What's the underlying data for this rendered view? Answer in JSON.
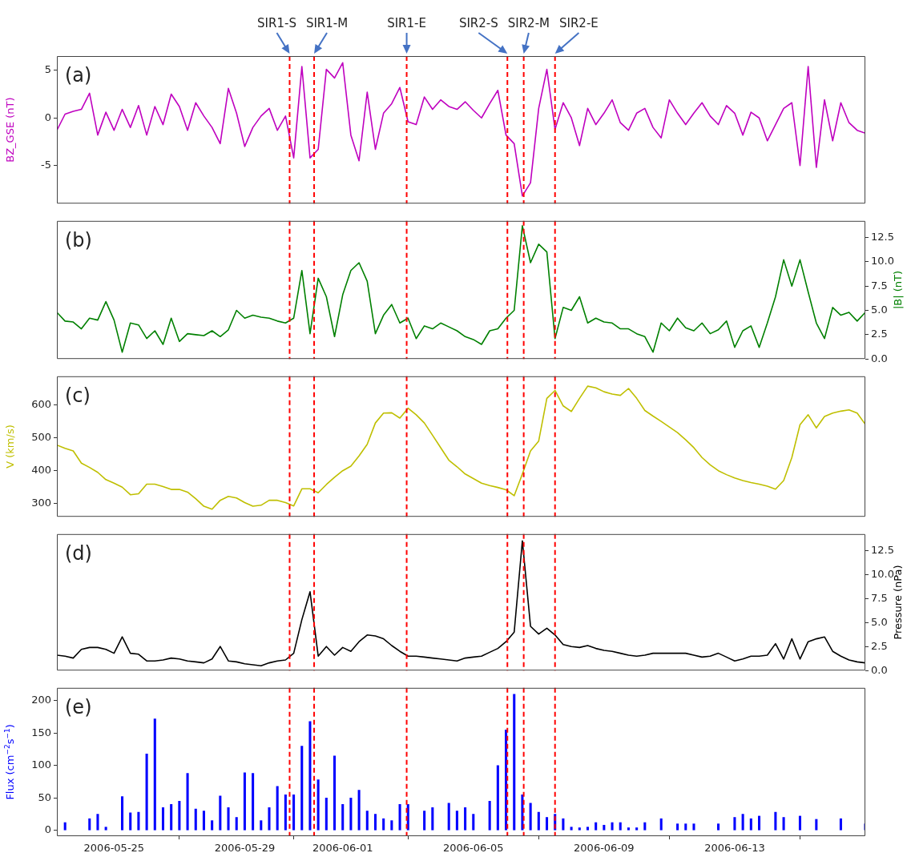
{
  "chart_data": [
    {
      "type": "line",
      "xlim": [
        "2006-05-23T06:00",
        "2006-06-17T00:00"
      ],
      "xticks": [
        "2006-05-25",
        "2006-05-29",
        "2006-06-01",
        "2006-06-05",
        "2006-06-09",
        "2006-06-13"
      ],
      "tick_labels": "y",
      "ylim": [
        -9,
        6.5
      ],
      "yticks": [
        -5,
        0,
        5
      ],
      "ylabel": "BZ_GSE (nT)",
      "annotations": [
        "(a)"
      ],
      "x": [
        "2006-05-23T06:00",
        "2006-05-23T12:00",
        "2006-05-23T18:00",
        "2006-05-24T00:00",
        "2006-05-24T06:00",
        "2006-05-24T12:00",
        "2006-05-24T18:00",
        "2006-05-25T00:00",
        "2006-05-25T06:00",
        "2006-05-25T12:00",
        "2006-05-25T18:00",
        "2006-05-26T00:00",
        "2006-05-26T06:00",
        "2006-05-26T12:00",
        "2006-05-26T18:00",
        "2006-05-27T00:00",
        "2006-05-27T06:00",
        "2006-05-27T12:00",
        "2006-05-27T18:00",
        "2006-05-28T00:00",
        "2006-05-28T06:00",
        "2006-05-28T12:00",
        "2006-05-28T18:00",
        "2006-05-29T00:00",
        "2006-05-29T06:00",
        "2006-05-29T12:00",
        "2006-05-29T18:00",
        "2006-05-30T00:00",
        "2006-05-30T06:00",
        "2006-05-30T12:00",
        "2006-05-30T18:00",
        "2006-05-31T00:00",
        "2006-05-31T06:00",
        "2006-05-31T12:00",
        "2006-05-31T18:00",
        "2006-06-01T00:00",
        "2006-06-01T06:00",
        "2006-06-01T12:00",
        "2006-06-01T18:00",
        "2006-06-02T00:00",
        "2006-06-02T06:00",
        "2006-06-02T12:00",
        "2006-06-02T18:00",
        "2006-06-03T00:00",
        "2006-06-03T06:00",
        "2006-06-03T12:00",
        "2006-06-03T18:00",
        "2006-06-04T00:00",
        "2006-06-04T06:00",
        "2006-06-04T12:00",
        "2006-06-04T18:00",
        "2006-06-05T00:00",
        "2006-06-05T06:00",
        "2006-06-05T12:00",
        "2006-06-05T18:00",
        "2006-06-06T00:00",
        "2006-06-06T06:00",
        "2006-06-06T12:00",
        "2006-06-06T18:00",
        "2006-06-07T00:00",
        "2006-06-07T06:00",
        "2006-06-07T12:00",
        "2006-06-07T18:00",
        "2006-06-08T00:00",
        "2006-06-08T06:00",
        "2006-06-08T12:00",
        "2006-06-08T18:00",
        "2006-06-09T00:00",
        "2006-06-09T06:00",
        "2006-06-09T12:00",
        "2006-06-09T18:00",
        "2006-06-10T00:00",
        "2006-06-10T06:00",
        "2006-06-10T12:00",
        "2006-06-10T18:00",
        "2006-06-11T00:00",
        "2006-06-11T06:00",
        "2006-06-11T12:00",
        "2006-06-11T18:00",
        "2006-06-12T00:00",
        "2006-06-12T06:00",
        "2006-06-12T12:00",
        "2006-06-12T18:00",
        "2006-06-13T00:00",
        "2006-06-13T06:00",
        "2006-06-13T12:00",
        "2006-06-13T18:00",
        "2006-06-14T00:00",
        "2006-06-14T06:00",
        "2006-06-14T12:00",
        "2006-06-14T18:00",
        "2006-06-15T00:00",
        "2006-06-15T06:00",
        "2006-06-15T12:00",
        "2006-06-15T18:00",
        "2006-06-16T00:00",
        "2006-06-16T06:00",
        "2006-06-16T12:00",
        "2006-06-16T18:00",
        "2006-06-17T00:00"
      ],
      "series": [
        {
          "color": "#bf00bf",
          "values": [
            -1.3,
            0.4,
            0.7,
            0.9,
            2.6,
            -1.8,
            0.6,
            -1.3,
            0.9,
            -1.0,
            1.3,
            -1.8,
            1.2,
            -0.7,
            2.5,
            1.2,
            -1.3,
            1.6,
            0.2,
            -1.0,
            -2.7,
            3.1,
            0.5,
            -3.0,
            -1.0,
            0.2,
            1.0,
            -1.3,
            0.2,
            -4.2,
            5.4,
            -4.2,
            -3.3,
            5.1,
            4.2,
            5.8,
            -1.8,
            -4.5,
            2.7,
            -3.3,
            0.5,
            1.5,
            3.2,
            -0.4,
            -0.7,
            2.2,
            0.9,
            1.9,
            1.2,
            0.9,
            1.7,
            0.8,
            0.0,
            1.5,
            2.9,
            -1.8,
            -2.7,
            -8.2,
            -6.8,
            1.0,
            5.1,
            -1.2,
            1.6,
            0.0,
            -2.9,
            1.0,
            -0.7,
            0.5,
            1.9,
            -0.5,
            -1.3,
            0.5,
            1.0,
            -1.0,
            -2.1,
            1.9,
            0.5,
            -0.7,
            0.5,
            1.6,
            0.2,
            -0.7,
            1.3,
            0.5,
            -1.8,
            0.6,
            0.0,
            -2.4,
            -0.7,
            1.0,
            1.6,
            -5.0,
            5.4,
            -5.2,
            1.9,
            -2.4,
            1.6,
            -0.5,
            -1.3,
            -1.6
          ]
        }
      ],
      "ref_lines": [
        {
          "axis": "x",
          "value": "2006-05-30T09:00",
          "label": "SIR1-S",
          "color": "#ff0000",
          "line_style": "dashed"
        },
        {
          "axis": "x",
          "value": "2006-05-31T03:00",
          "label": "SIR1-M",
          "color": "#ff0000",
          "line_style": "dashed"
        },
        {
          "axis": "x",
          "value": "2006-06-02T23:00",
          "label": "SIR1-E",
          "color": "#ff0000",
          "line_style": "dashed"
        },
        {
          "axis": "x",
          "value": "2006-06-06T01:00",
          "label": "SIR2-S",
          "color": "#ff0000",
          "line_style": "dashed"
        },
        {
          "axis": "x",
          "value": "2006-06-06T13:00",
          "label": "SIR2-M",
          "color": "#ff0000",
          "line_style": "dashed"
        },
        {
          "axis": "x",
          "value": "2006-06-07T12:00",
          "label": "SIR2-E",
          "color": "#ff0000",
          "line_style": "dashed"
        }
      ]
    },
    {
      "type": "line",
      "xlim": [
        "2006-05-23T06:00",
        "2006-06-17T00:00"
      ],
      "xticks": [
        "2006-05-25",
        "2006-05-29",
        "2006-06-01",
        "2006-06-05",
        "2006-06-09",
        "2006-06-13"
      ],
      "tick_labels": "y",
      "y2lim": [
        0,
        14.2
      ],
      "y2ticks": [
        {
          "value": 0,
          "label": "0.0"
        },
        {
          "value": 2.5,
          "label": "2.5"
        },
        {
          "value": 5,
          "label": "5.0"
        },
        {
          "value": 7.5,
          "label": "7.5"
        },
        {
          "value": 10,
          "label": "10.0"
        },
        {
          "value": 12.5,
          "label": "12.5"
        }
      ],
      "y2label": "|B| (nT)",
      "annotations": [
        "(b)"
      ],
      "x": [
        "2006-05-23T06:00",
        "2006-05-23T12:00",
        "2006-05-23T18:00",
        "2006-05-24T00:00",
        "2006-05-24T06:00",
        "2006-05-24T12:00",
        "2006-05-24T18:00",
        "2006-05-25T00:00",
        "2006-05-25T06:00",
        "2006-05-25T12:00",
        "2006-05-25T18:00",
        "2006-05-26T00:00",
        "2006-05-26T06:00",
        "2006-05-26T12:00",
        "2006-05-26T18:00",
        "2006-05-27T00:00",
        "2006-05-27T06:00",
        "2006-05-27T12:00",
        "2006-05-27T18:00",
        "2006-05-28T00:00",
        "2006-05-28T06:00",
        "2006-05-28T12:00",
        "2006-05-28T18:00",
        "2006-05-29T00:00",
        "2006-05-29T06:00",
        "2006-05-29T12:00",
        "2006-05-29T18:00",
        "2006-05-30T00:00",
        "2006-05-30T06:00",
        "2006-05-30T12:00",
        "2006-05-30T18:00",
        "2006-05-31T00:00",
        "2006-05-31T06:00",
        "2006-05-31T12:00",
        "2006-05-31T18:00",
        "2006-06-01T00:00",
        "2006-06-01T06:00",
        "2006-06-01T12:00",
        "2006-06-01T18:00",
        "2006-06-02T00:00",
        "2006-06-02T06:00",
        "2006-06-02T12:00",
        "2006-06-02T18:00",
        "2006-06-03T00:00",
        "2006-06-03T06:00",
        "2006-06-03T12:00",
        "2006-06-03T18:00",
        "2006-06-04T00:00",
        "2006-06-04T06:00",
        "2006-06-04T12:00",
        "2006-06-04T18:00",
        "2006-06-05T00:00",
        "2006-06-05T06:00",
        "2006-06-05T12:00",
        "2006-06-05T18:00",
        "2006-06-06T00:00",
        "2006-06-06T06:00",
        "2006-06-06T12:00",
        "2006-06-06T18:00",
        "2006-06-07T00:00",
        "2006-06-07T06:00",
        "2006-06-07T12:00",
        "2006-06-07T18:00",
        "2006-06-08T00:00",
        "2006-06-08T06:00",
        "2006-06-08T12:00",
        "2006-06-08T18:00",
        "2006-06-09T00:00",
        "2006-06-09T06:00",
        "2006-06-09T12:00",
        "2006-06-09T18:00",
        "2006-06-10T00:00",
        "2006-06-10T06:00",
        "2006-06-10T12:00",
        "2006-06-10T18:00",
        "2006-06-11T00:00",
        "2006-06-11T06:00",
        "2006-06-11T12:00",
        "2006-06-11T18:00",
        "2006-06-12T00:00",
        "2006-06-12T06:00",
        "2006-06-12T12:00",
        "2006-06-12T18:00",
        "2006-06-13T00:00",
        "2006-06-13T06:00",
        "2006-06-13T12:00",
        "2006-06-13T18:00",
        "2006-06-14T00:00",
        "2006-06-14T06:00",
        "2006-06-14T12:00",
        "2006-06-14T18:00",
        "2006-06-15T00:00",
        "2006-06-15T06:00",
        "2006-06-15T12:00",
        "2006-06-15T18:00",
        "2006-06-16T00:00",
        "2006-06-16T06:00",
        "2006-06-16T12:00",
        "2006-06-16T18:00",
        "2006-06-17T00:00"
      ],
      "series": [
        {
          "color": "#008000",
          "axis": "y2",
          "values": [
            4.8,
            3.9,
            3.8,
            3.1,
            4.2,
            4.0,
            5.9,
            4.0,
            0.7,
            3.7,
            3.5,
            2.1,
            2.9,
            1.5,
            4.2,
            1.8,
            2.6,
            2.5,
            2.4,
            2.9,
            2.3,
            3.0,
            5.0,
            4.2,
            4.5,
            4.3,
            4.2,
            3.9,
            3.7,
            4.2,
            9.1,
            2.6,
            8.3,
            6.4,
            2.3,
            6.6,
            9.1,
            9.9,
            8.0,
            2.6,
            4.5,
            5.6,
            3.7,
            4.2,
            2.1,
            3.4,
            3.1,
            3.7,
            3.3,
            2.9,
            2.3,
            2.0,
            1.5,
            2.9,
            3.1,
            4.2,
            5.0,
            13.7,
            9.9,
            11.8,
            11.0,
            2.1,
            5.3,
            5.0,
            6.4,
            3.7,
            4.2,
            3.8,
            3.7,
            3.1,
            3.1,
            2.6,
            2.3,
            0.7,
            3.7,
            2.9,
            4.2,
            3.2,
            2.9,
            3.7,
            2.6,
            3.0,
            3.9,
            1.2,
            2.9,
            3.4,
            1.2,
            3.7,
            6.4,
            10.2,
            7.5,
            10.2,
            6.9,
            3.7,
            2.1,
            5.3,
            4.5,
            4.8,
            3.9,
            4.8
          ]
        }
      ],
      "ref_lines": [
        {
          "axis": "x",
          "value": "2006-05-30T09:00",
          "color": "#ff0000",
          "line_style": "dashed"
        },
        {
          "axis": "x",
          "value": "2006-05-31T03:00",
          "color": "#ff0000",
          "line_style": "dashed"
        },
        {
          "axis": "x",
          "value": "2006-06-02T23:00",
          "color": "#ff0000",
          "line_style": "dashed"
        },
        {
          "axis": "x",
          "value": "2006-06-06T01:00",
          "color": "#ff0000",
          "line_style": "dashed"
        },
        {
          "axis": "x",
          "value": "2006-06-06T13:00",
          "color": "#ff0000",
          "line_style": "dashed"
        },
        {
          "axis": "x",
          "value": "2006-06-07T12:00",
          "color": "#ff0000",
          "line_style": "dashed"
        }
      ]
    },
    {
      "type": "line",
      "xlim": [
        "2006-05-23T06:00",
        "2006-06-17T00:00"
      ],
      "xticks": [
        "2006-05-25",
        "2006-05-29",
        "2006-06-01",
        "2006-06-05",
        "2006-06-09",
        "2006-06-13"
      ],
      "tick_labels": "y",
      "ylim": [
        260,
        687
      ],
      "yticks": [
        300,
        400,
        500,
        600
      ],
      "ylabel": "V (km/s)",
      "annotations": [
        "(c)"
      ],
      "x": [
        "2006-05-23T06:00",
        "2006-05-23T12:00",
        "2006-05-23T18:00",
        "2006-05-24T00:00",
        "2006-05-24T06:00",
        "2006-05-24T12:00",
        "2006-05-24T18:00",
        "2006-05-25T00:00",
        "2006-05-25T06:00",
        "2006-05-25T12:00",
        "2006-05-25T18:00",
        "2006-05-26T00:00",
        "2006-05-26T06:00",
        "2006-05-26T12:00",
        "2006-05-26T18:00",
        "2006-05-27T00:00",
        "2006-05-27T06:00",
        "2006-05-27T12:00",
        "2006-05-27T18:00",
        "2006-05-28T00:00",
        "2006-05-28T06:00",
        "2006-05-28T12:00",
        "2006-05-28T18:00",
        "2006-05-29T00:00",
        "2006-05-29T06:00",
        "2006-05-29T12:00",
        "2006-05-29T18:00",
        "2006-05-30T00:00",
        "2006-05-30T06:00",
        "2006-05-30T12:00",
        "2006-05-30T18:00",
        "2006-05-31T00:00",
        "2006-05-31T06:00",
        "2006-05-31T12:00",
        "2006-05-31T18:00",
        "2006-06-01T00:00",
        "2006-06-01T06:00",
        "2006-06-01T12:00",
        "2006-06-01T18:00",
        "2006-06-02T00:00",
        "2006-06-02T06:00",
        "2006-06-02T12:00",
        "2006-06-02T18:00",
        "2006-06-03T00:00",
        "2006-06-03T06:00",
        "2006-06-03T12:00",
        "2006-06-03T18:00",
        "2006-06-04T00:00",
        "2006-06-04T06:00",
        "2006-06-04T12:00",
        "2006-06-04T18:00",
        "2006-06-05T00:00",
        "2006-06-05T06:00",
        "2006-06-05T12:00",
        "2006-06-05T18:00",
        "2006-06-06T00:00",
        "2006-06-06T06:00",
        "2006-06-06T12:00",
        "2006-06-06T18:00",
        "2006-06-07T00:00",
        "2006-06-07T06:00",
        "2006-06-07T12:00",
        "2006-06-07T18:00",
        "2006-06-08T00:00",
        "2006-06-08T06:00",
        "2006-06-08T12:00",
        "2006-06-08T18:00",
        "2006-06-09T00:00",
        "2006-06-09T06:00",
        "2006-06-09T12:00",
        "2006-06-09T18:00",
        "2006-06-10T00:00",
        "2006-06-10T06:00",
        "2006-06-10T12:00",
        "2006-06-10T18:00",
        "2006-06-11T00:00",
        "2006-06-11T06:00",
        "2006-06-11T12:00",
        "2006-06-11T18:00",
        "2006-06-12T00:00",
        "2006-06-12T06:00",
        "2006-06-12T12:00",
        "2006-06-12T18:00",
        "2006-06-13T00:00",
        "2006-06-13T06:00",
        "2006-06-13T12:00",
        "2006-06-13T18:00",
        "2006-06-14T00:00",
        "2006-06-14T06:00",
        "2006-06-14T12:00",
        "2006-06-14T18:00",
        "2006-06-15T00:00",
        "2006-06-15T06:00",
        "2006-06-15T12:00",
        "2006-06-15T18:00",
        "2006-06-16T00:00",
        "2006-06-16T06:00",
        "2006-06-16T12:00",
        "2006-06-16T18:00",
        "2006-06-17T00:00"
      ],
      "series": [
        {
          "color": "#bfbf00",
          "values": [
            478,
            468,
            460,
            423,
            410,
            395,
            373,
            362,
            350,
            327,
            330,
            359,
            359,
            352,
            343,
            343,
            335,
            315,
            292,
            283,
            310,
            322,
            317,
            303,
            292,
            295,
            310,
            310,
            303,
            293,
            345,
            345,
            333,
            358,
            380,
            400,
            414,
            445,
            480,
            545,
            575,
            576,
            560,
            590,
            570,
            545,
            508,
            470,
            432,
            412,
            390,
            376,
            362,
            355,
            349,
            342,
            324,
            390,
            460,
            490,
            620,
            644,
            597,
            580,
            620,
            657,
            652,
            640,
            633,
            629,
            650,
            620,
            583,
            566,
            550,
            533,
            516,
            494,
            470,
            440,
            418,
            400,
            388,
            378,
            370,
            364,
            359,
            353,
            344,
            370,
            440,
            540,
            570,
            530,
            565,
            575,
            581,
            585,
            575,
            541
          ]
        }
      ],
      "ref_lines": [
        {
          "axis": "x",
          "value": "2006-05-30T09:00",
          "color": "#ff0000",
          "line_style": "dashed"
        },
        {
          "axis": "x",
          "value": "2006-05-31T03:00",
          "color": "#ff0000",
          "line_style": "dashed"
        },
        {
          "axis": "x",
          "value": "2006-06-02T23:00",
          "color": "#ff0000",
          "line_style": "dashed"
        },
        {
          "axis": "x",
          "value": "2006-06-06T01:00",
          "color": "#ff0000",
          "line_style": "dashed"
        },
        {
          "axis": "x",
          "value": "2006-06-06T13:00",
          "color": "#ff0000",
          "line_style": "dashed"
        },
        {
          "axis": "x",
          "value": "2006-06-07T12:00",
          "color": "#ff0000",
          "line_style": "dashed"
        }
      ]
    },
    {
      "type": "line",
      "xlim": [
        "2006-05-23T06:00",
        "2006-06-17T00:00"
      ],
      "xticks": [
        "2006-05-25",
        "2006-05-29",
        "2006-06-01",
        "2006-06-05",
        "2006-06-09",
        "2006-06-13"
      ],
      "tick_labels": "y",
      "y2lim": [
        0,
        14.2
      ],
      "y2ticks": [
        {
          "value": 0,
          "label": "0.0"
        },
        {
          "value": 2.5,
          "label": "2.5"
        },
        {
          "value": 5,
          "label": "5.0"
        },
        {
          "value": 7.5,
          "label": "7.5"
        },
        {
          "value": 10,
          "label": "10.0"
        },
        {
          "value": 12.5,
          "label": "12.5"
        }
      ],
      "y2label": "Pressure (nPa)",
      "annotations": [
        "(d)"
      ],
      "x": [
        "2006-05-23T06:00",
        "2006-05-23T12:00",
        "2006-05-23T18:00",
        "2006-05-24T00:00",
        "2006-05-24T06:00",
        "2006-05-24T12:00",
        "2006-05-24T18:00",
        "2006-05-25T00:00",
        "2006-05-25T06:00",
        "2006-05-25T12:00",
        "2006-05-25T18:00",
        "2006-05-26T00:00",
        "2006-05-26T06:00",
        "2006-05-26T12:00",
        "2006-05-26T18:00",
        "2006-05-27T00:00",
        "2006-05-27T06:00",
        "2006-05-27T12:00",
        "2006-05-27T18:00",
        "2006-05-28T00:00",
        "2006-05-28T06:00",
        "2006-05-28T12:00",
        "2006-05-28T18:00",
        "2006-05-29T00:00",
        "2006-05-29T06:00",
        "2006-05-29T12:00",
        "2006-05-29T18:00",
        "2006-05-30T00:00",
        "2006-05-30T06:00",
        "2006-05-30T12:00",
        "2006-05-30T18:00",
        "2006-05-31T00:00",
        "2006-05-31T06:00",
        "2006-05-31T12:00",
        "2006-05-31T18:00",
        "2006-06-01T00:00",
        "2006-06-01T06:00",
        "2006-06-01T12:00",
        "2006-06-01T18:00",
        "2006-06-02T00:00",
        "2006-06-02T06:00",
        "2006-06-02T12:00",
        "2006-06-02T18:00",
        "2006-06-03T00:00",
        "2006-06-03T06:00",
        "2006-06-03T12:00",
        "2006-06-03T18:00",
        "2006-06-04T00:00",
        "2006-06-04T06:00",
        "2006-06-04T12:00",
        "2006-06-04T18:00",
        "2006-06-05T00:00",
        "2006-06-05T06:00",
        "2006-06-05T12:00",
        "2006-06-05T18:00",
        "2006-06-06T00:00",
        "2006-06-06T06:00",
        "2006-06-06T12:00",
        "2006-06-06T18:00",
        "2006-06-07T00:00",
        "2006-06-07T06:00",
        "2006-06-07T12:00",
        "2006-06-07T18:00",
        "2006-06-08T00:00",
        "2006-06-08T06:00",
        "2006-06-08T12:00",
        "2006-06-08T18:00",
        "2006-06-09T00:00",
        "2006-06-09T06:00",
        "2006-06-09T12:00",
        "2006-06-09T18:00",
        "2006-06-10T00:00",
        "2006-06-10T06:00",
        "2006-06-10T12:00",
        "2006-06-10T18:00",
        "2006-06-11T00:00",
        "2006-06-11T06:00",
        "2006-06-11T12:00",
        "2006-06-11T18:00",
        "2006-06-12T00:00",
        "2006-06-12T06:00",
        "2006-06-12T12:00",
        "2006-06-12T18:00",
        "2006-06-13T00:00",
        "2006-06-13T06:00",
        "2006-06-13T12:00",
        "2006-06-13T18:00",
        "2006-06-14T00:00",
        "2006-06-14T06:00",
        "2006-06-14T12:00",
        "2006-06-14T18:00",
        "2006-06-15T00:00",
        "2006-06-15T06:00",
        "2006-06-15T12:00",
        "2006-06-15T18:00",
        "2006-06-16T00:00",
        "2006-06-16T06:00",
        "2006-06-16T12:00",
        "2006-06-16T18:00",
        "2006-06-17T00:00"
      ],
      "series": [
        {
          "color": "#000000",
          "axis": "y2",
          "values": [
            1.6,
            1.5,
            1.3,
            2.2,
            2.4,
            2.4,
            2.2,
            1.8,
            3.5,
            1.8,
            1.7,
            1.0,
            1.0,
            1.1,
            1.3,
            1.2,
            1.0,
            0.9,
            0.8,
            1.2,
            2.5,
            1.0,
            0.9,
            0.7,
            0.6,
            0.5,
            0.8,
            1.0,
            1.1,
            1.8,
            5.3,
            8.2,
            1.5,
            2.5,
            1.6,
            2.4,
            2.0,
            3.0,
            3.7,
            3.6,
            3.3,
            2.6,
            2.0,
            1.5,
            1.5,
            1.4,
            1.3,
            1.2,
            1.1,
            1.0,
            1.3,
            1.4,
            1.5,
            1.9,
            2.3,
            3.0,
            4.0,
            13.5,
            4.6,
            3.8,
            4.4,
            3.7,
            2.7,
            2.5,
            2.4,
            2.6,
            2.3,
            2.1,
            2.0,
            1.8,
            1.6,
            1.5,
            1.6,
            1.8,
            1.8,
            1.8,
            1.8,
            1.8,
            1.6,
            1.4,
            1.5,
            1.8,
            1.4,
            1.0,
            1.2,
            1.5,
            1.5,
            1.6,
            2.8,
            1.2,
            3.3,
            1.2,
            3.0,
            3.3,
            3.5,
            2.0,
            1.5,
            1.1,
            0.9,
            0.8
          ]
        }
      ],
      "ref_lines": [
        {
          "axis": "x",
          "value": "2006-05-30T09:00",
          "color": "#ff0000",
          "line_style": "dashed"
        },
        {
          "axis": "x",
          "value": "2006-05-31T03:00",
          "color": "#ff0000",
          "line_style": "dashed"
        },
        {
          "axis": "x",
          "value": "2006-06-02T23:00",
          "color": "#ff0000",
          "line_style": "dashed"
        },
        {
          "axis": "x",
          "value": "2006-06-06T01:00",
          "color": "#ff0000",
          "line_style": "dashed"
        },
        {
          "axis": "x",
          "value": "2006-06-06T13:00",
          "color": "#ff0000",
          "line_style": "dashed"
        },
        {
          "axis": "x",
          "value": "2006-06-07T12:00",
          "color": "#ff0000",
          "line_style": "dashed"
        }
      ]
    },
    {
      "type": "bar",
      "xlim": [
        "2006-05-23T06:00",
        "2006-06-17T00:00"
      ],
      "xticks": [
        "2006-05-25",
        "2006-05-29",
        "2006-06-01",
        "2006-06-05",
        "2006-06-09",
        "2006-06-13"
      ],
      "ylim": [
        -9,
        220
      ],
      "yticks": [
        0,
        50,
        100,
        150,
        200
      ],
      "ylabel": "Flux (cm$^{−2}$s$^{−1}$)",
      "annotations": [
        "(e)"
      ],
      "x": [
        "2006-05-23T12:00",
        "2006-05-23T18:00",
        "2006-05-24T00:00",
        "2006-05-24T06:00",
        "2006-05-24T12:00",
        "2006-05-24T18:00",
        "2006-05-25T00:00",
        "2006-05-25T06:00",
        "2006-05-25T12:00",
        "2006-05-25T18:00",
        "2006-05-26T00:00",
        "2006-05-26T06:00",
        "2006-05-26T12:00",
        "2006-05-26T18:00",
        "2006-05-27T00:00",
        "2006-05-27T06:00",
        "2006-05-27T12:00",
        "2006-05-27T18:00",
        "2006-05-28T00:00",
        "2006-05-28T06:00",
        "2006-05-28T12:00",
        "2006-05-28T18:00",
        "2006-05-29T00:00",
        "2006-05-29T06:00",
        "2006-05-29T12:00",
        "2006-05-29T18:00",
        "2006-05-30T00:00",
        "2006-05-30T06:00",
        "2006-05-30T12:00",
        "2006-05-30T18:00",
        "2006-05-31T00:00",
        "2006-05-31T06:00",
        "2006-05-31T12:00",
        "2006-05-31T18:00",
        "2006-06-01T00:00",
        "2006-06-01T06:00",
        "2006-06-01T12:00",
        "2006-06-01T18:00",
        "2006-06-02T00:00",
        "2006-06-02T06:00",
        "2006-06-02T12:00",
        "2006-06-02T18:00",
        "2006-06-03T00:00",
        "2006-06-03T06:00",
        "2006-06-03T12:00",
        "2006-06-03T18:00",
        "2006-06-04T00:00",
        "2006-06-04T06:00",
        "2006-06-04T12:00",
        "2006-06-04T18:00",
        "2006-06-05T00:00",
        "2006-06-05T06:00",
        "2006-06-05T12:00",
        "2006-06-05T18:00",
        "2006-06-06T00:00",
        "2006-06-06T06:00",
        "2006-06-06T12:00",
        "2006-06-06T18:00",
        "2006-06-07T00:00",
        "2006-06-07T06:00",
        "2006-06-07T12:00",
        "2006-06-07T18:00",
        "2006-06-08T00:00",
        "2006-06-08T06:00",
        "2006-06-08T12:00",
        "2006-06-08T18:00",
        "2006-06-09T00:00",
        "2006-06-09T06:00",
        "2006-06-09T12:00",
        "2006-06-09T18:00",
        "2006-06-10T00:00",
        "2006-06-10T06:00",
        "2006-06-10T12:00",
        "2006-06-10T18:00",
        "2006-06-11T00:00",
        "2006-06-11T06:00",
        "2006-06-11T12:00",
        "2006-06-11T18:00",
        "2006-06-12T00:00",
        "2006-06-12T06:00",
        "2006-06-12T12:00",
        "2006-06-12T18:00",
        "2006-06-13T00:00",
        "2006-06-13T06:00",
        "2006-06-13T12:00",
        "2006-06-13T18:00",
        "2006-06-14T00:00",
        "2006-06-14T06:00",
        "2006-06-14T12:00",
        "2006-06-14T18:00",
        "2006-06-15T00:00",
        "2006-06-15T06:00",
        "2006-06-15T12:00",
        "2006-06-15T18:00",
        "2006-06-16T00:00",
        "2006-06-16T06:00",
        "2006-06-16T12:00",
        "2006-06-16T18:00",
        "2006-06-17T00:00"
      ],
      "series": [
        {
          "color": "#0000ff",
          "values": [
            12,
            null,
            null,
            18,
            25,
            5,
            null,
            52,
            27,
            28,
            118,
            172,
            35,
            40,
            45,
            88,
            33,
            30,
            15,
            53,
            35,
            20,
            89,
            88,
            15,
            35,
            68,
            55,
            55,
            130,
            168,
            78,
            50,
            115,
            40,
            50,
            62,
            30,
            25,
            18,
            15,
            40,
            40,
            null,
            30,
            35,
            null,
            42,
            30,
            35,
            25,
            null,
            45,
            100,
            155,
            210,
            55,
            42,
            28,
            20,
            25,
            18,
            5,
            4,
            5,
            12,
            8,
            12,
            12,
            4,
            4,
            12,
            null,
            18,
            null,
            10,
            10,
            10,
            null,
            null,
            10,
            null,
            20,
            25,
            18,
            22,
            null,
            28,
            20,
            null,
            22,
            null,
            17,
            null,
            null,
            18,
            null,
            null,
            10
          ]
        }
      ],
      "ref_lines": [
        {
          "axis": "x",
          "value": "2006-05-30T09:00",
          "color": "#ff0000",
          "line_style": "dashed"
        },
        {
          "axis": "x",
          "value": "2006-05-31T03:00",
          "color": "#ff0000",
          "line_style": "dashed"
        },
        {
          "axis": "x",
          "value": "2006-06-02T23:00",
          "color": "#ff0000",
          "line_style": "dashed"
        },
        {
          "axis": "x",
          "value": "2006-06-06T01:00",
          "color": "#ff0000",
          "line_style": "dashed"
        },
        {
          "axis": "x",
          "value": "2006-06-06T13:00",
          "color": "#ff0000",
          "line_style": "dashed"
        },
        {
          "axis": "x",
          "value": "2006-06-07T12:00",
          "color": "#ff0000",
          "line_style": "dashed"
        }
      ]
    }
  ]
}
